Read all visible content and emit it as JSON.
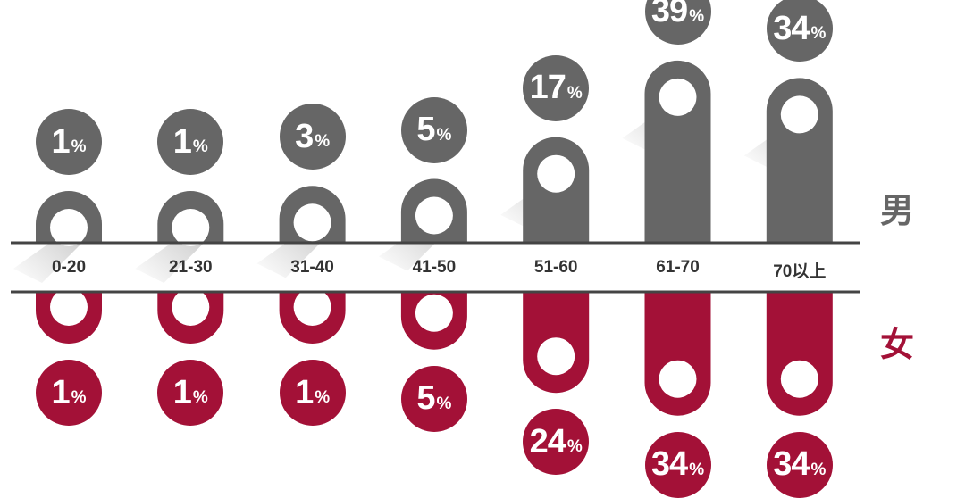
{
  "chart_data": {
    "type": "bar",
    "categories": [
      "0-20",
      "21-30",
      "31-40",
      "41-50",
      "51-60",
      "61-70",
      "70以上"
    ],
    "series": [
      {
        "name": "男",
        "values": [
          1,
          1,
          3,
          5,
          17,
          39,
          34
        ],
        "unit": "%"
      },
      {
        "name": "女",
        "values": [
          1,
          1,
          1,
          5,
          24,
          34,
          34
        ],
        "unit": "%"
      }
    ]
  },
  "colors": {
    "male": "#666666",
    "female": "#a31137",
    "axis": "#444444",
    "label": "#333333"
  },
  "legend": {
    "male_label": "男",
    "female_label": "女"
  }
}
